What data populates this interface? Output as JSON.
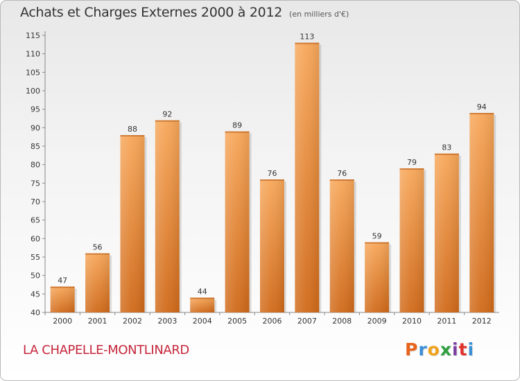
{
  "header": {
    "title": "Achats et Charges Externes 2000 à 2012",
    "subtitle": "(en milliers d'€)"
  },
  "footer": {
    "place": "LA CHAPELLE-MONTLINARD",
    "brand": "Proxiti",
    "brand_colors": [
      "#e8631c",
      "#3a8fd6",
      "#f0a21a",
      "#2e9e3e",
      "#7a3fa0",
      "#e0322c",
      "#3a8fd6"
    ]
  },
  "colors": {
    "bar_light": "#f7a75a",
    "bar_dark": "#d06a1a",
    "grid": "#cfcfcf"
  },
  "chart_data": {
    "type": "bar",
    "categories": [
      "2000",
      "2001",
      "2002",
      "2003",
      "2004",
      "2005",
      "2006",
      "2007",
      "2008",
      "2009",
      "2010",
      "2011",
      "2012"
    ],
    "values": [
      47,
      56,
      88,
      92,
      44,
      89,
      76,
      113,
      76,
      59,
      79,
      83,
      94
    ],
    "title": "Achats et Charges Externes 2000 à 2012",
    "subtitle": "(en milliers d'€)",
    "ylim": [
      40,
      115
    ],
    "yticks": [
      40,
      45,
      50,
      55,
      60,
      65,
      70,
      75,
      80,
      85,
      90,
      95,
      100,
      105,
      110,
      115
    ],
    "grid": false,
    "data_labels": true
  }
}
